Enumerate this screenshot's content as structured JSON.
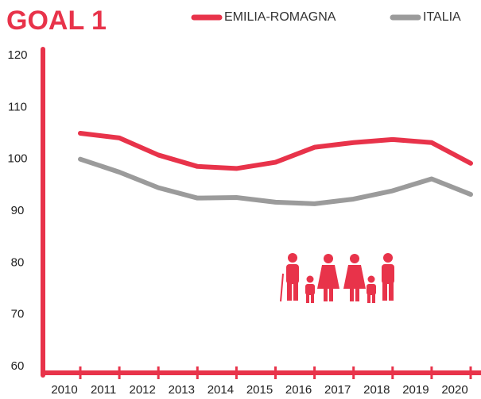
{
  "chart_data": {
    "type": "line",
    "title": "GOAL 1",
    "categories": [
      "2010",
      "2011",
      "2012",
      "2013",
      "2014",
      "2015",
      "2016",
      "2017",
      "2018",
      "2019",
      "2020"
    ],
    "series": [
      {
        "name": "EMILIA-ROMAGNA",
        "color": "#e8334a",
        "values": [
          105.0,
          104.1,
          100.8,
          98.6,
          98.2,
          99.4,
          102.3,
          103.2,
          103.8,
          103.2,
          99.2
        ]
      },
      {
        "name": "ITALIA",
        "color": "#9b9b9b",
        "values": [
          100.0,
          97.5,
          94.5,
          92.5,
          92.6,
          91.7,
          91.4,
          92.3,
          93.9,
          96.2,
          93.2
        ]
      }
    ],
    "ylim": [
      60,
      120
    ],
    "yticks": [
      60,
      70,
      80,
      90,
      100,
      110,
      120
    ],
    "axis_color": "#e8334a"
  }
}
